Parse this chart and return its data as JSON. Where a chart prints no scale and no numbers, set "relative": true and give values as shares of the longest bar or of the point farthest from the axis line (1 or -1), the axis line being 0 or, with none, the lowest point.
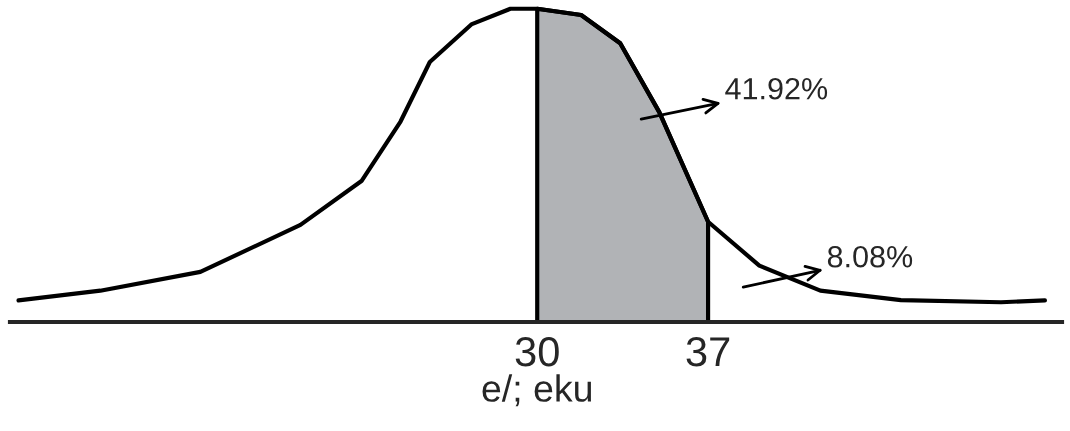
{
  "chart_data": {
    "type": "line",
    "relative": true,
    "xlabel": "e/; eku",
    "x": [
      8.75,
      12.1,
      16.2,
      20.3,
      22.8,
      24.4,
      25.6,
      27.3,
      28.9,
      30,
      31.8,
      33.4,
      35.0,
      37,
      39.1,
      41.6,
      44.9,
      49.0,
      50.8
    ],
    "series": [
      {
        "color": "#000000",
        "values": [
          0.069,
          0.1,
          0.16,
          0.31,
          0.45,
          0.64,
          0.83,
          0.95,
          1.0,
          1.0,
          0.98,
          0.89,
          0.67,
          0.32,
          0.18,
          0.1,
          0.07,
          0.063,
          0.069
        ]
      },
      {
        "type": "area",
        "color": "#b1b3b6",
        "x": [
          30,
          31.8,
          33.4,
          35.0,
          37
        ],
        "values": [
          1.0,
          0.98,
          0.89,
          0.67,
          0.32
        ]
      }
    ],
    "xlim": [
      8.4,
      51.5
    ],
    "xticks": [
      30,
      37
    ],
    "tick_labels": "x",
    "grid": false,
    "annotations": [
      "41.92%",
      "8.08%"
    ]
  }
}
